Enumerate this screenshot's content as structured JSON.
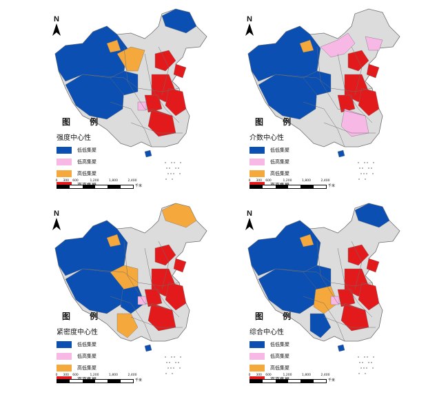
{
  "legend_title": "图    例",
  "panels": [
    {
      "subtitle": "强度中心性"
    },
    {
      "subtitle": "介数中心性"
    },
    {
      "subtitle": "紧密度中心性"
    },
    {
      "subtitle": "综合中心性"
    }
  ],
  "legend_items": [
    {
      "label": "低低集聚",
      "color": "#0b4fb3"
    },
    {
      "label": "低高集聚",
      "color": "#f7b8e6"
    },
    {
      "label": "高低集聚",
      "color": "#f5a83c"
    },
    {
      "label": "高高集聚",
      "color": "#e31a1c"
    }
  ],
  "north_label": "N",
  "scale": {
    "ticks": [
      "0",
      "300",
      "600",
      "1,200",
      "1,800",
      "2,400"
    ],
    "unit": "千米"
  },
  "colors": {
    "background_region": "#dcdcdc",
    "boundary": "#6e6e6e"
  }
}
